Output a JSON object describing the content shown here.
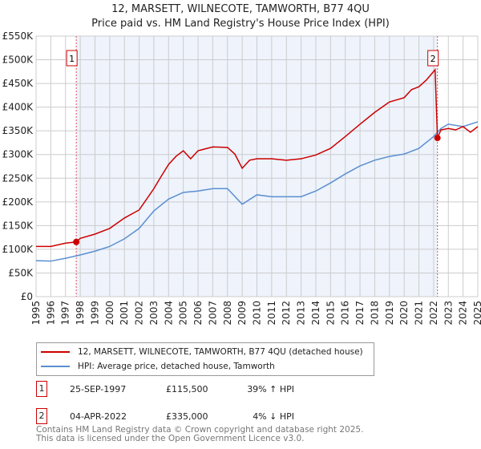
{
  "title": "12, MARSETT, WILNECOTE, TAMWORTH, B77 4QU",
  "subtitle": "Price paid vs. HM Land Registry's House Price Index (HPI)",
  "chart_data": {
    "type": "line",
    "ylim": [
      0,
      550000
    ],
    "xlim": [
      1995,
      2025
    ],
    "yticks": [
      0,
      50000,
      100000,
      150000,
      200000,
      250000,
      300000,
      350000,
      400000,
      450000,
      500000,
      550000
    ],
    "ytick_labels": [
      "£0",
      "£50K",
      "£100K",
      "£150K",
      "£200K",
      "£250K",
      "£300K",
      "£350K",
      "£400K",
      "£450K",
      "£500K",
      "£550K"
    ],
    "xtick_labels": [
      "1995",
      "1996",
      "1997",
      "1998",
      "1999",
      "2000",
      "2001",
      "2002",
      "2003",
      "2004",
      "2005",
      "2006",
      "2007",
      "2008",
      "2009",
      "2010",
      "2011",
      "2012",
      "2013",
      "2014",
      "2015",
      "2016",
      "2017",
      "2018",
      "2019",
      "2020",
      "2021",
      "2022",
      "2023",
      "2024",
      "2025"
    ],
    "grid": true,
    "series": [
      {
        "name": "12, MARSETT, WILNECOTE, TAMWORTH, B77 4QU (detached house)",
        "color": "#cc0000",
        "x": [
          1995,
          1996,
          1997,
          1997.73,
          1998,
          1999,
          2000,
          2001,
          2002,
          2003,
          2003.5,
          2004,
          2004.5,
          2005,
          2005.5,
          2006,
          2007,
          2008,
          2008.5,
          2009,
          2009.5,
          2010,
          2011,
          2012,
          2013,
          2014,
          2015,
          2016,
          2017,
          2018,
          2019,
          2020,
          2020.5,
          2021,
          2021.5,
          2022.1,
          2022.26,
          2022.5,
          2023,
          2023.5,
          2024,
          2024.5,
          2025
        ],
        "y": [
          106000,
          106000,
          113000,
          115500,
          123000,
          132000,
          144000,
          166000,
          183000,
          228000,
          254000,
          279000,
          296000,
          308000,
          291000,
          308000,
          316000,
          315000,
          301000,
          271000,
          288000,
          291000,
          291000,
          288000,
          291000,
          299000,
          313000,
          338000,
          364000,
          389000,
          411000,
          420000,
          437000,
          443000,
          457000,
          479000,
          335000,
          352000,
          355000,
          352000,
          359000,
          347000,
          359000
        ]
      },
      {
        "name": "HPI: Average price, detached house, Tamworth",
        "color": "#5b8fd0",
        "x": [
          1995,
          1996,
          1997,
          1998,
          1999,
          2000,
          2001,
          2002,
          2003,
          2004,
          2005,
          2006,
          2007,
          2008,
          2009,
          2010,
          2011,
          2012,
          2013,
          2014,
          2015,
          2016,
          2017,
          2018,
          2019,
          2020,
          2021,
          2022,
          2022.5,
          2023,
          2024,
          2025
        ],
        "y": [
          76000,
          75000,
          81000,
          88000,
          96000,
          106000,
          122000,
          144000,
          181000,
          206000,
          220000,
          223000,
          228000,
          228000,
          195000,
          215000,
          211000,
          211000,
          211000,
          223000,
          240000,
          259000,
          276000,
          288000,
          296000,
          301000,
          313000,
          338000,
          355000,
          364000,
          359000,
          369000
        ]
      }
    ],
    "annotations": [
      {
        "label": "1",
        "x": 1997.73,
        "y": 115500
      },
      {
        "label": "2",
        "x": 2022.26,
        "y": 335000
      }
    ],
    "shade_between": [
      1997.73,
      2022.26
    ]
  },
  "legend": {
    "red": "12, MARSETT, WILNECOTE, TAMWORTH, B77 4QU (detached house)",
    "blue": "HPI: Average price, detached house, Tamworth"
  },
  "sales": [
    {
      "num": "1",
      "date": "25-SEP-1997",
      "price": "£115,500",
      "hpi": "39% ↑ HPI"
    },
    {
      "num": "2",
      "date": "04-APR-2022",
      "price": "£335,000",
      "hpi": "4% ↓ HPI"
    }
  ],
  "footer": {
    "line1": "Contains HM Land Registry data © Crown copyright and database right 2025.",
    "line2": "This data is licensed under the Open Government Licence v3.0."
  }
}
